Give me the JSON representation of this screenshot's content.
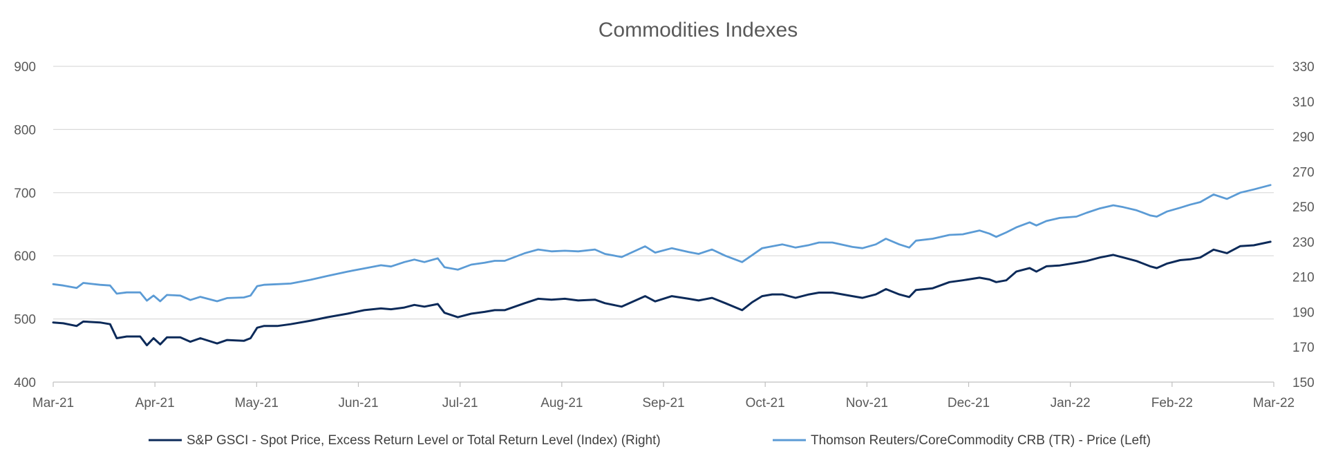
{
  "chart_data": {
    "type": "line",
    "title": "Commodities Indexes",
    "x_tick_labels": [
      "Mar-21",
      "Apr-21",
      "May-21",
      "Jun-21",
      "Jul-21",
      "Aug-21",
      "Sep-21",
      "Oct-21",
      "Nov-21",
      "Dec-21",
      "Jan-22",
      "Feb-22",
      "Mar-22"
    ],
    "x_range": [
      "2021-03-01",
      "2022-03-01"
    ],
    "y_left": {
      "min": 400,
      "max": 900,
      "ticks": [
        "400",
        "500",
        "600",
        "700",
        "800",
        "900"
      ]
    },
    "y_right": {
      "min": 150,
      "max": 330,
      "ticks": [
        "150",
        "170",
        "190",
        "210",
        "230",
        "250",
        "270",
        "290",
        "310",
        "330"
      ]
    },
    "grid": "horizontal",
    "legend_position": "bottom",
    "series": [
      {
        "name": "S&P GSCI - Spot Price, Excess Return Level or Total Return Level (Index) (Right)",
        "axis": "right",
        "color": "#0c2a59",
        "points": [
          [
            "2021-03-01",
            184
          ],
          [
            "2021-03-04",
            183.5
          ],
          [
            "2021-03-08",
            182
          ],
          [
            "2021-03-10",
            184.5
          ],
          [
            "2021-03-15",
            184
          ],
          [
            "2021-03-18",
            183
          ],
          [
            "2021-03-20",
            175
          ],
          [
            "2021-03-23",
            176
          ],
          [
            "2021-03-27",
            176
          ],
          [
            "2021-03-29",
            171
          ],
          [
            "2021-03-31",
            175
          ],
          [
            "2021-04-02",
            171.5
          ],
          [
            "2021-04-04",
            175.5
          ],
          [
            "2021-04-08",
            175.5
          ],
          [
            "2021-04-11",
            173
          ],
          [
            "2021-04-14",
            175
          ],
          [
            "2021-04-19",
            172
          ],
          [
            "2021-04-22",
            174
          ],
          [
            "2021-04-27",
            173.5
          ],
          [
            "2021-04-29",
            175
          ],
          [
            "2021-05-01",
            181
          ],
          [
            "2021-05-03",
            182
          ],
          [
            "2021-05-07",
            182
          ],
          [
            "2021-05-11",
            183
          ],
          [
            "2021-05-17",
            185
          ],
          [
            "2021-05-22",
            187
          ],
          [
            "2021-05-28",
            189
          ],
          [
            "2021-06-02",
            191
          ],
          [
            "2021-06-07",
            192
          ],
          [
            "2021-06-10",
            191.5
          ],
          [
            "2021-06-14",
            192.5
          ],
          [
            "2021-06-17",
            194
          ],
          [
            "2021-06-20",
            193
          ],
          [
            "2021-06-24",
            194.5
          ],
          [
            "2021-06-26",
            189.5
          ],
          [
            "2021-06-30",
            187
          ],
          [
            "2021-07-04",
            189
          ],
          [
            "2021-07-08",
            190
          ],
          [
            "2021-07-11",
            191
          ],
          [
            "2021-07-14",
            191
          ],
          [
            "2021-07-20",
            195
          ],
          [
            "2021-07-24",
            197.5
          ],
          [
            "2021-07-28",
            197
          ],
          [
            "2021-08-01",
            197.5
          ],
          [
            "2021-08-05",
            196.5
          ],
          [
            "2021-08-10",
            197
          ],
          [
            "2021-08-13",
            195
          ],
          [
            "2021-08-18",
            193
          ],
          [
            "2021-08-25",
            199
          ],
          [
            "2021-08-28",
            196
          ],
          [
            "2021-09-02",
            199
          ],
          [
            "2021-09-07",
            197.5
          ],
          [
            "2021-09-10",
            196.5
          ],
          [
            "2021-09-14",
            198
          ],
          [
            "2021-09-18",
            195
          ],
          [
            "2021-09-23",
            191
          ],
          [
            "2021-09-26",
            195.5
          ],
          [
            "2021-09-29",
            199
          ],
          [
            "2021-10-02",
            200
          ],
          [
            "2021-10-05",
            200
          ],
          [
            "2021-10-09",
            198
          ],
          [
            "2021-10-13",
            200
          ],
          [
            "2021-10-16",
            201
          ],
          [
            "2021-10-20",
            201
          ],
          [
            "2021-10-26",
            199
          ],
          [
            "2021-10-29",
            198
          ],
          [
            "2021-11-02",
            200
          ],
          [
            "2021-11-05",
            203
          ],
          [
            "2021-11-09",
            200
          ],
          [
            "2021-11-12",
            198.5
          ],
          [
            "2021-11-14",
            202.5
          ],
          [
            "2021-11-19",
            203.5
          ],
          [
            "2021-11-24",
            207
          ],
          [
            "2021-11-28",
            208
          ],
          [
            "2021-12-03",
            209.5
          ],
          [
            "2021-12-06",
            208.5
          ],
          [
            "2021-12-08",
            207
          ],
          [
            "2021-12-11",
            208
          ],
          [
            "2021-12-14",
            213
          ],
          [
            "2021-12-18",
            215
          ],
          [
            "2021-12-20",
            213
          ],
          [
            "2021-12-23",
            216
          ],
          [
            "2021-12-27",
            216.5
          ],
          [
            "2022-01-01",
            218
          ],
          [
            "2022-01-04",
            219
          ],
          [
            "2022-01-08",
            221
          ],
          [
            "2022-01-12",
            222.5
          ],
          [
            "2022-01-15",
            221
          ],
          [
            "2022-01-19",
            219
          ],
          [
            "2022-01-23",
            216
          ],
          [
            "2022-01-25",
            215
          ],
          [
            "2022-01-28",
            217.5
          ],
          [
            "2022-02-01",
            219.5
          ],
          [
            "2022-02-04",
            220
          ],
          [
            "2022-02-07",
            221
          ],
          [
            "2022-02-11",
            225.5
          ],
          [
            "2022-02-15",
            223.5
          ],
          [
            "2022-02-19",
            227.5
          ],
          [
            "2022-02-23",
            228
          ],
          [
            "2022-02-28",
            230
          ]
        ]
      },
      {
        "name": "Thomson Reuters/CoreCommodity CRB (TR) - Price (Left)",
        "axis": "left",
        "color": "#5b9bd5",
        "points": [
          [
            "2021-03-01",
            555
          ],
          [
            "2021-03-04",
            553
          ],
          [
            "2021-03-08",
            549
          ],
          [
            "2021-03-10",
            557
          ],
          [
            "2021-03-15",
            554
          ],
          [
            "2021-03-18",
            553
          ],
          [
            "2021-03-20",
            540
          ],
          [
            "2021-03-23",
            542
          ],
          [
            "2021-03-27",
            542
          ],
          [
            "2021-03-29",
            529
          ],
          [
            "2021-03-31",
            537
          ],
          [
            "2021-04-02",
            528
          ],
          [
            "2021-04-04",
            538
          ],
          [
            "2021-04-08",
            537
          ],
          [
            "2021-04-11",
            530
          ],
          [
            "2021-04-14",
            535
          ],
          [
            "2021-04-19",
            528
          ],
          [
            "2021-04-22",
            533
          ],
          [
            "2021-04-27",
            534
          ],
          [
            "2021-04-29",
            537
          ],
          [
            "2021-05-01",
            552
          ],
          [
            "2021-05-03",
            554
          ],
          [
            "2021-05-07",
            555
          ],
          [
            "2021-05-11",
            556
          ],
          [
            "2021-05-17",
            562
          ],
          [
            "2021-05-22",
            568
          ],
          [
            "2021-05-28",
            575
          ],
          [
            "2021-06-02",
            580
          ],
          [
            "2021-06-07",
            585
          ],
          [
            "2021-06-10",
            583
          ],
          [
            "2021-06-14",
            590
          ],
          [
            "2021-06-17",
            594
          ],
          [
            "2021-06-20",
            590
          ],
          [
            "2021-06-24",
            596
          ],
          [
            "2021-06-26",
            582
          ],
          [
            "2021-06-30",
            578
          ],
          [
            "2021-07-04",
            586
          ],
          [
            "2021-07-08",
            589
          ],
          [
            "2021-07-11",
            592
          ],
          [
            "2021-07-14",
            592
          ],
          [
            "2021-07-20",
            604
          ],
          [
            "2021-07-24",
            610
          ],
          [
            "2021-07-28",
            607
          ],
          [
            "2021-08-01",
            608
          ],
          [
            "2021-08-05",
            607
          ],
          [
            "2021-08-10",
            610
          ],
          [
            "2021-08-13",
            603
          ],
          [
            "2021-08-18",
            598
          ],
          [
            "2021-08-25",
            615
          ],
          [
            "2021-08-28",
            605
          ],
          [
            "2021-09-02",
            612
          ],
          [
            "2021-09-07",
            606
          ],
          [
            "2021-09-10",
            603
          ],
          [
            "2021-09-14",
            610
          ],
          [
            "2021-09-18",
            600
          ],
          [
            "2021-09-23",
            590
          ],
          [
            "2021-09-26",
            601
          ],
          [
            "2021-09-29",
            612
          ],
          [
            "2021-10-02",
            615
          ],
          [
            "2021-10-05",
            618
          ],
          [
            "2021-10-09",
            613
          ],
          [
            "2021-10-13",
            617
          ],
          [
            "2021-10-16",
            621
          ],
          [
            "2021-10-20",
            621
          ],
          [
            "2021-10-26",
            614
          ],
          [
            "2021-10-29",
            612
          ],
          [
            "2021-11-02",
            618
          ],
          [
            "2021-11-05",
            627
          ],
          [
            "2021-11-09",
            618
          ],
          [
            "2021-11-12",
            613
          ],
          [
            "2021-11-14",
            624
          ],
          [
            "2021-11-19",
            627
          ],
          [
            "2021-11-24",
            633
          ],
          [
            "2021-11-28",
            634
          ],
          [
            "2021-12-03",
            640
          ],
          [
            "2021-12-06",
            635
          ],
          [
            "2021-12-08",
            630
          ],
          [
            "2021-12-11",
            637
          ],
          [
            "2021-12-14",
            645
          ],
          [
            "2021-12-18",
            653
          ],
          [
            "2021-12-20",
            648
          ],
          [
            "2021-12-23",
            655
          ],
          [
            "2021-12-27",
            660
          ],
          [
            "2022-01-01",
            662
          ],
          [
            "2022-01-04",
            668
          ],
          [
            "2022-01-08",
            675
          ],
          [
            "2022-01-12",
            680
          ],
          [
            "2022-01-15",
            677
          ],
          [
            "2022-01-19",
            672
          ],
          [
            "2022-01-23",
            664
          ],
          [
            "2022-01-25",
            662
          ],
          [
            "2022-01-28",
            670
          ],
          [
            "2022-02-01",
            676
          ],
          [
            "2022-02-04",
            681
          ],
          [
            "2022-02-07",
            685
          ],
          [
            "2022-02-11",
            697
          ],
          [
            "2022-02-15",
            690
          ],
          [
            "2022-02-19",
            700
          ],
          [
            "2022-02-23",
            705
          ],
          [
            "2022-02-28",
            712
          ]
        ]
      }
    ]
  }
}
